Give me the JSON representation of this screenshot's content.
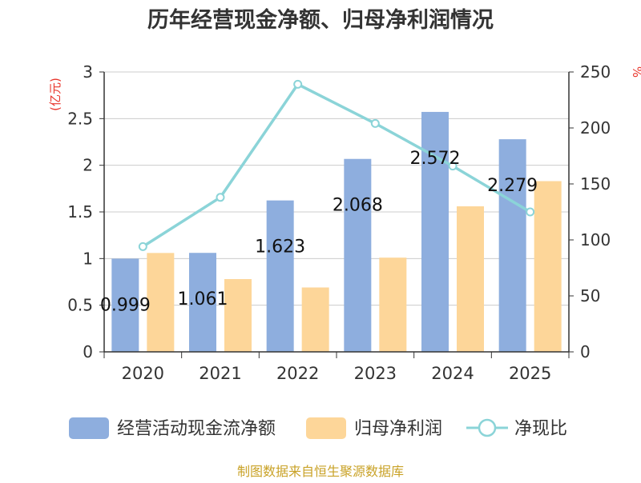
{
  "chart_data": {
    "type": "bar",
    "title": "历年经营现金净额、归母净利润情况",
    "categories": [
      "2020",
      "2021",
      "2022",
      "2023",
      "2024",
      "2025"
    ],
    "series": [
      {
        "name": "经营活动现金流净额",
        "type": "bar",
        "axis": "left",
        "values": [
          0.999,
          1.061,
          1.623,
          2.068,
          2.572,
          2.279
        ],
        "labels": [
          "0.999",
          "1.061",
          "1.623",
          "2.068",
          "2.572",
          "2.279"
        ],
        "color": "#8eaede"
      },
      {
        "name": "归母净利润",
        "type": "bar",
        "axis": "left",
        "values": [
          1.06,
          0.78,
          0.69,
          1.01,
          1.56,
          1.83
        ],
        "color": "#fdd699"
      },
      {
        "name": "净现比",
        "type": "line",
        "axis": "right",
        "values": [
          94,
          138,
          239,
          204,
          166,
          125
        ],
        "color": "#8bd4d8"
      }
    ],
    "y_left": {
      "label": "(亿元)",
      "min": 0,
      "max": 3,
      "ticks": [
        "0",
        "0.5",
        "1",
        "1.5",
        "2",
        "2.5",
        "3"
      ]
    },
    "y_right": {
      "label": "%",
      "min": 0,
      "max": 250,
      "ticks": [
        "0",
        "50",
        "100",
        "150",
        "200",
        "250"
      ]
    },
    "grid": true,
    "legend_position": "bottom",
    "source": "制图数据来自恒生聚源数据库"
  }
}
